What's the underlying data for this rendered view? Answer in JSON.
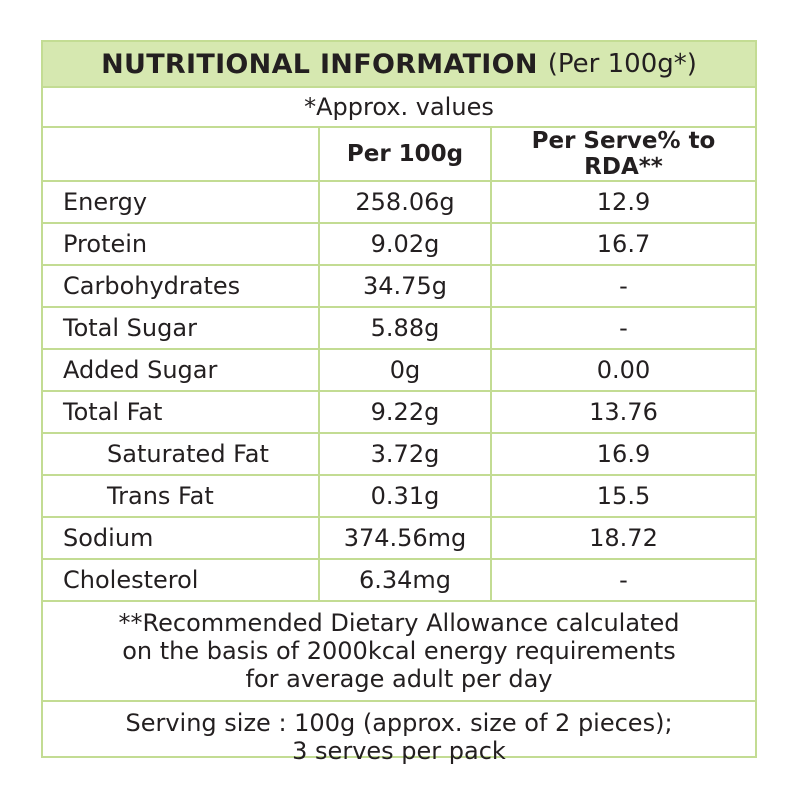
{
  "header": {
    "title": "NUTRITIONAL INFORMATION",
    "subtitle": "(Per 100g*)"
  },
  "approx_note": "*Approx. values",
  "columns": {
    "per_100g": "Per 100g",
    "per_serve": "Per Serve% to RDA**"
  },
  "rows": [
    {
      "name": "Energy",
      "per_100g": "258.06g",
      "per_serve": "12.9"
    },
    {
      "name": "Protein",
      "per_100g": "9.02g",
      "per_serve": "16.7"
    },
    {
      "name": "Carbohydrates",
      "per_100g": "34.75g",
      "per_serve": "-"
    },
    {
      "name": "Total Sugar",
      "per_100g": "5.88g",
      "per_serve": "-"
    },
    {
      "name": "Added Sugar",
      "per_100g": "0g",
      "per_serve": "0.00"
    },
    {
      "name": "Total Fat",
      "per_100g": "9.22g",
      "per_serve": "13.76"
    },
    {
      "name": "Saturated Fat",
      "per_100g": "3.72g",
      "per_serve": "16.9"
    },
    {
      "name": "Trans Fat",
      "per_100g": "0.31g",
      "per_serve": "15.5"
    },
    {
      "name": "Sodium",
      "per_100g": "374.56mg",
      "per_serve": "18.72"
    },
    {
      "name": "Cholesterol",
      "per_100g": "6.34mg",
      "per_serve": "-"
    }
  ],
  "footnote": {
    "line1": "**Recommended Dietary Allowance calculated",
    "line2": "on the basis of 2000kcal energy requirements",
    "line3": "for average adult per day"
  },
  "serving": {
    "line1": "Serving size : 100g (approx. size of 2 pieces);",
    "line2": "3 serves per pack"
  },
  "colors": {
    "header_bg": "#d6e8b0",
    "border": "#c3dc93",
    "text": "#231f20"
  }
}
